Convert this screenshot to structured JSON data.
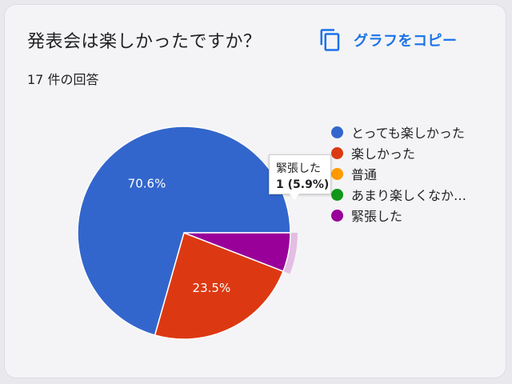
{
  "card": {
    "title": "発表会は楽しかったですか？",
    "response_count": "17 件の回答",
    "copy_button_label": "グラフをコピー"
  },
  "chart_data": {
    "type": "pie",
    "categories": [
      "とっても楽しかった",
      "楽しかった",
      "普通",
      "あまり楽しくなか…",
      "緊張した"
    ],
    "values": [
      12,
      4,
      0,
      0,
      1
    ],
    "percentages": [
      70.6,
      23.5,
      0,
      0,
      5.9
    ],
    "colors": [
      "#3366cc",
      "#dc3912",
      "#ff9900",
      "#109618",
      "#990099"
    ],
    "slice_labels": [
      "70.6%",
      "23.5%",
      "",
      "",
      ""
    ],
    "legend_position": "right",
    "highlighted_slice": "緊張した"
  },
  "tooltip": {
    "label": "緊張した",
    "value": "1 (5.9%)"
  },
  "icons": {
    "copy": "copy-icon"
  }
}
